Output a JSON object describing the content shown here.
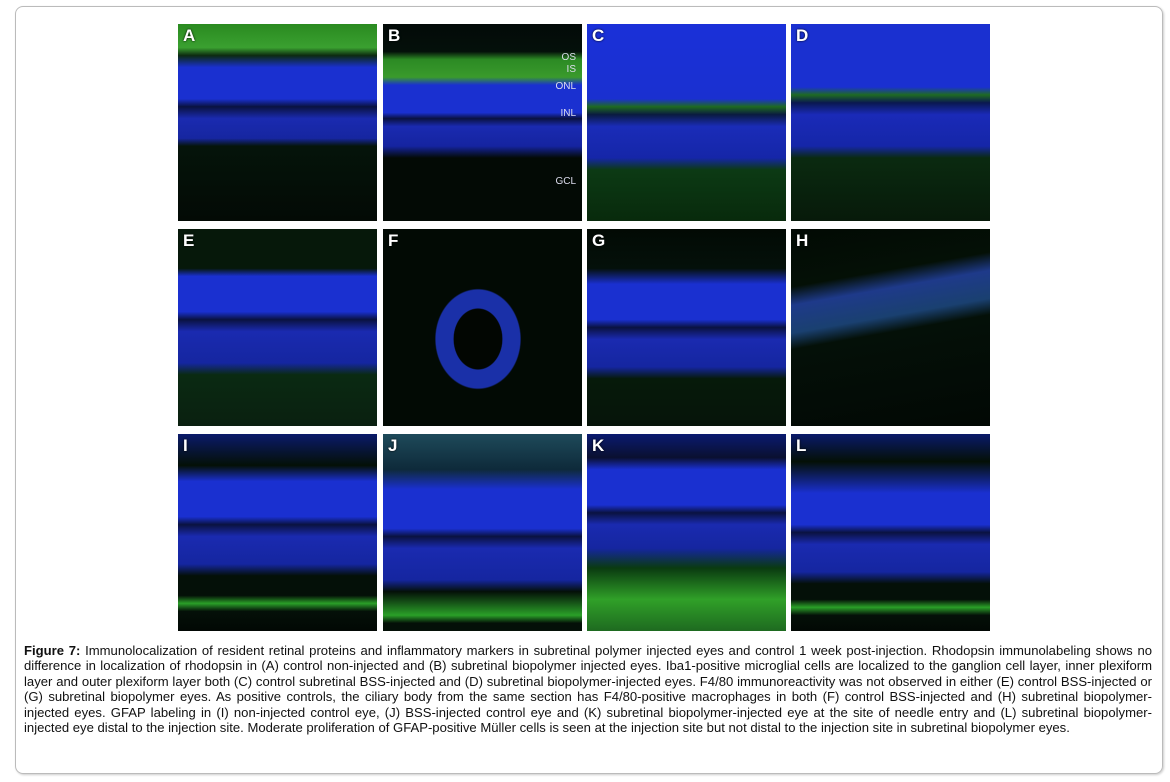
{
  "figure": {
    "panels": [
      {
        "label": "A"
      },
      {
        "label": "B",
        "layers": [
          "OS",
          "IS",
          "ONL",
          "INL",
          "GCL"
        ]
      },
      {
        "label": "C"
      },
      {
        "label": "D"
      },
      {
        "label": "E"
      },
      {
        "label": "F"
      },
      {
        "label": "G"
      },
      {
        "label": "H"
      },
      {
        "label": "I"
      },
      {
        "label": "J"
      },
      {
        "label": "K"
      },
      {
        "label": "L"
      }
    ],
    "colors": {
      "nuclear_stain": "#1a30d0",
      "marker": "#2aa028"
    }
  },
  "caption": {
    "lead": "Figure 7:",
    "text": " Immunolocalization of resident retinal proteins and inflammatory markers in subretinal polymer injected eyes and control 1 week post-injection. Rhodopsin immunolabeling shows no difference in localization of rhodopsin in (A) control non-injected and (B) subretinal biopolymer injected eyes. Iba1-positive microglial cells are localized to the ganglion cell layer, inner plexiform layer and outer plexiform layer both (C) control subretinal BSS-injected and (D) subretinal biopolymer-injected eyes. F4/80 immunoreactivity was not observed in either (E) control BSS-injected or (G) subretinal biopolymer eyes. As positive controls, the ciliary body from the same section has F4/80-positive macrophages in both (F) control BSS-injected and (H) subretinal biopolymer-injected eyes. GFAP labeling in (I) non-injected control eye, (J) BSS-injected control eye and (K) subretinal biopolymer-injected eye at the site of needle entry and (L) subretinal biopolymer-injected eye distal to the injection site. Moderate proliferation of GFAP-positive Müller cells is seen at the injection site but not distal to the injection site in subretinal biopolymer eyes."
  }
}
